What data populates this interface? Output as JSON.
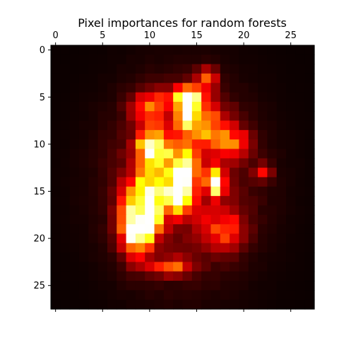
{
  "chart_data": {
    "type": "heatmap",
    "title": "Pixel importances for random forests",
    "colormap": "hot",
    "grid": false,
    "n_rows": 28,
    "n_cols": 28,
    "xlim": [
      -0.5,
      27.5
    ],
    "ylim": [
      27.5,
      -0.5
    ],
    "x_ticks": [
      0,
      5,
      10,
      15,
      20,
      25
    ],
    "y_ticks": [
      0,
      5,
      10,
      15,
      20,
      25
    ],
    "x_tick_labels": [
      "0",
      "5",
      "10",
      "15",
      "20",
      "25"
    ],
    "y_tick_labels": [
      "0",
      "5",
      "10",
      "15",
      "20",
      "25"
    ],
    "x_axis_position": "top",
    "value_range": [
      0,
      1
    ],
    "hotspots": [
      {
        "row": 3,
        "col": 16,
        "value": 0.42,
        "sr": 0.8,
        "sc": 0.8
      },
      {
        "row": 5,
        "col": 14,
        "value": 0.88,
        "sr": 0.8,
        "sc": 1.2
      },
      {
        "row": 7,
        "col": 14,
        "value": 0.8,
        "sr": 0.9,
        "sc": 0.8
      },
      {
        "row": 6,
        "col": 10,
        "value": 0.42,
        "sr": 1.2,
        "sc": 1.4
      },
      {
        "row": 8,
        "col": 16,
        "value": 0.45,
        "sr": 1.5,
        "sc": 1.8
      },
      {
        "row": 10,
        "col": 10,
        "value": 0.62,
        "sr": 1.2,
        "sc": 0.9
      },
      {
        "row": 10,
        "col": 19,
        "value": 0.42,
        "sr": 1.0,
        "sc": 1.2
      },
      {
        "row": 13,
        "col": 14,
        "value": 1.0,
        "sr": 0.9,
        "sc": 0.6
      },
      {
        "row": 14,
        "col": 13,
        "value": 0.72,
        "sr": 1.3,
        "sc": 0.8
      },
      {
        "row": 14,
        "col": 17,
        "value": 0.85,
        "sr": 1.0,
        "sc": 0.6
      },
      {
        "row": 16,
        "col": 13,
        "value": 0.72,
        "sr": 1.0,
        "sc": 1.0
      },
      {
        "row": 15,
        "col": 10,
        "value": 0.6,
        "sr": 1.6,
        "sc": 1.2
      },
      {
        "row": 18,
        "col": 10,
        "value": 0.78,
        "sr": 1.2,
        "sc": 0.9
      },
      {
        "row": 18,
        "col": 8,
        "value": 0.55,
        "sr": 2.5,
        "sc": 1.0
      },
      {
        "row": 20,
        "col": 9,
        "value": 0.6,
        "sr": 1.2,
        "sc": 0.9
      },
      {
        "row": 23,
        "col": 12,
        "value": 0.5,
        "sr": 0.6,
        "sc": 1.6
      },
      {
        "row": 13,
        "col": 22,
        "value": 0.4,
        "sr": 0.6,
        "sc": 0.6
      },
      {
        "row": 11,
        "col": 12,
        "value": 0.45,
        "sr": 1.5,
        "sc": 2.0
      },
      {
        "row": 19,
        "col": 18,
        "value": 0.35,
        "sr": 1.5,
        "sc": 1.5
      }
    ],
    "base_blob": {
      "row": 14,
      "col": 13.5,
      "value": 0.25,
      "sr": 6.5,
      "sc": 5.0
    }
  }
}
